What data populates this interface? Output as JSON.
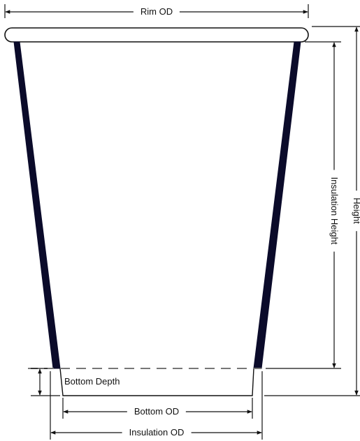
{
  "labels": {
    "rim_od": "Rim OD",
    "height": "Height",
    "insulation_height": "Insulation Height",
    "bottom_depth": "Bottom Depth",
    "bottom_od": "Bottom OD",
    "insulation_od": "Insulation OD"
  },
  "colors": {
    "outline": "#111111",
    "wall_fill": "#0b0b2a",
    "dashed": "#777777"
  }
}
